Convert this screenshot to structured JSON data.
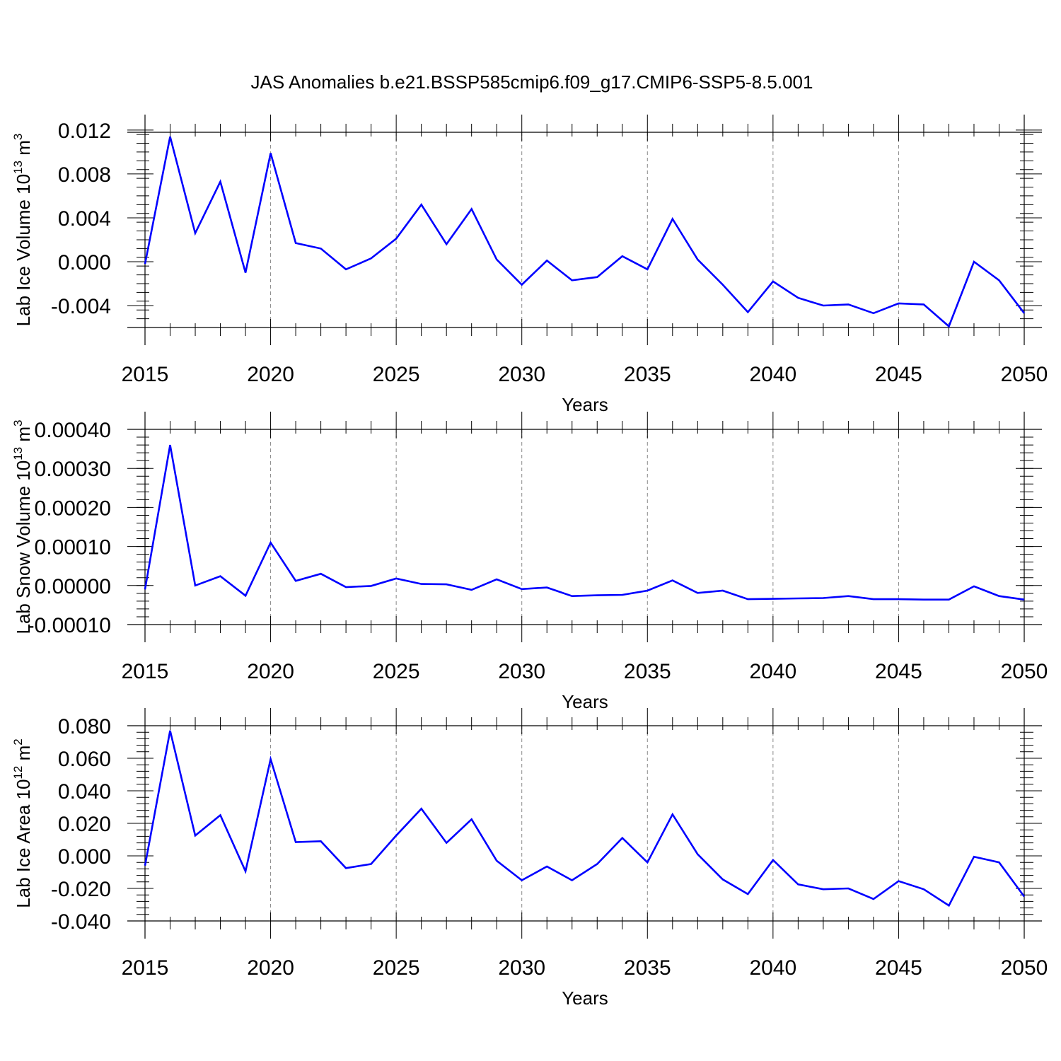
{
  "title": "JAS Anomalies b.e21.BSSP585cmip6.f09_g17.CMIP6-SSP5-8.5.001",
  "line_color": "#0000ff",
  "chart_data": [
    {
      "type": "line",
      "title": "JAS Anomalies b.e21.BSSP585cmip6.f09_g17.CMIP6-SSP5-8.5.001",
      "xlabel": "Years",
      "ylabel": {
        "base": "Lab Ice Volume 10",
        "exp": "13",
        "unit": " m",
        "unit_exp": "3"
      },
      "xlim": [
        2015,
        2050
      ],
      "ylim": [
        -0.006,
        0.0118
      ],
      "yticks": [
        0.012,
        0.008,
        0.004,
        0.0,
        -0.004
      ],
      "ytick_labels": [
        "0.012",
        "0.008",
        "0.004",
        "0.000",
        "-0.004"
      ],
      "xticks": [
        2015,
        2020,
        2025,
        2030,
        2035,
        2040,
        2045,
        2050
      ],
      "xtick_labels": [
        "2015",
        "2020",
        "2025",
        "2030",
        "2035",
        "2040",
        "2045",
        "2050"
      ],
      "x": [
        2015,
        2016,
        2017,
        2018,
        2019,
        2020,
        2021,
        2022,
        2023,
        2024,
        2025,
        2026,
        2027,
        2028,
        2029,
        2030,
        2031,
        2032,
        2033,
        2034,
        2035,
        2036,
        2037,
        2038,
        2039,
        2040,
        2041,
        2042,
        2043,
        2044,
        2045,
        2046,
        2047,
        2048,
        2049,
        2050
      ],
      "series": [
        {
          "name": "Lab Ice Volume",
          "values": [
            -0.0002,
            0.0114,
            0.0026,
            0.0073,
            -0.001,
            0.0099,
            0.0017,
            0.0012,
            -0.0007,
            0.0003,
            0.0021,
            0.0052,
            0.0016,
            0.0048,
            0.0002,
            -0.0021,
            0.0001,
            -0.0017,
            -0.0014,
            0.0005,
            -0.0007,
            0.0039,
            0.0002,
            -0.0021,
            -0.0046,
            -0.0018,
            -0.0033,
            -0.004,
            -0.0039,
            -0.0047,
            -0.0038,
            -0.0039,
            -0.0059,
            0.0,
            -0.0017,
            -0.0047
          ]
        }
      ]
    },
    {
      "type": "line",
      "xlabel": "Years",
      "ylabel": {
        "base": "Lab Snow Volume 10",
        "exp": "13",
        "unit": " m",
        "unit_exp": "3"
      },
      "xlim": [
        2015,
        2050
      ],
      "ylim": [
        -0.0001,
        0.0004
      ],
      "yticks": [
        0.0004,
        0.0003,
        0.0002,
        0.0001,
        0.0,
        -0.0001
      ],
      "ytick_labels": [
        "0.00040",
        "0.00030",
        "0.00020",
        "0.00010",
        "0.00000",
        "-0.00010"
      ],
      "xticks": [
        2015,
        2020,
        2025,
        2030,
        2035,
        2040,
        2045,
        2050
      ],
      "xtick_labels": [
        "2015",
        "2020",
        "2025",
        "2030",
        "2035",
        "2040",
        "2045",
        "2050"
      ],
      "x": [
        2015,
        2016,
        2017,
        2018,
        2019,
        2020,
        2021,
        2022,
        2023,
        2024,
        2025,
        2026,
        2027,
        2028,
        2029,
        2030,
        2031,
        2032,
        2033,
        2034,
        2035,
        2036,
        2037,
        2038,
        2039,
        2040,
        2041,
        2042,
        2043,
        2044,
        2045,
        2046,
        2047,
        2048,
        2049,
        2050
      ],
      "series": [
        {
          "name": "Lab Snow Volume",
          "values": [
            -1e-05,
            0.00036,
            0.0,
            2.4e-05,
            -2.6e-05,
            0.00011,
            1.2e-05,
            3e-05,
            -4e-06,
            -1e-06,
            1.8e-05,
            4e-06,
            3e-06,
            -1.1e-05,
            1.6e-05,
            -9e-06,
            -5e-06,
            -2.7e-05,
            -2.5e-05,
            -2.4e-05,
            -1.3e-05,
            1.3e-05,
            -1.9e-05,
            -1.3e-05,
            -3.5e-05,
            -3.4e-05,
            -3.3e-05,
            -3.2e-05,
            -2.7e-05,
            -3.5e-05,
            -3.5e-05,
            -3.6e-05,
            -3.6e-05,
            -2e-06,
            -2.7e-05,
            -3.6e-05
          ]
        }
      ]
    },
    {
      "type": "line",
      "xlabel": "Years",
      "ylabel": {
        "base": "Lab Ice Area 10",
        "exp": "12",
        "unit": " m",
        "unit_exp": "2"
      },
      "xlim": [
        2015,
        2050
      ],
      "ylim": [
        -0.04,
        0.08
      ],
      "yticks": [
        0.08,
        0.06,
        0.04,
        0.02,
        0.0,
        -0.02,
        -0.04
      ],
      "ytick_labels": [
        "0.080",
        "0.060",
        "0.040",
        "0.020",
        "0.000",
        "-0.020",
        "-0.040"
      ],
      "xticks": [
        2015,
        2020,
        2025,
        2030,
        2035,
        2040,
        2045,
        2050
      ],
      "xtick_labels": [
        "2015",
        "2020",
        "2025",
        "2030",
        "2035",
        "2040",
        "2045",
        "2050"
      ],
      "x": [
        2015,
        2016,
        2017,
        2018,
        2019,
        2020,
        2021,
        2022,
        2023,
        2024,
        2025,
        2026,
        2027,
        2028,
        2029,
        2030,
        2031,
        2032,
        2033,
        2034,
        2035,
        2036,
        2037,
        2038,
        2039,
        2040,
        2041,
        2042,
        2043,
        2044,
        2045,
        2046,
        2047,
        2048,
        2049,
        2050
      ],
      "series": [
        {
          "name": "Lab Ice Area",
          "values": [
            -0.006,
            0.077,
            0.0125,
            0.025,
            -0.0095,
            0.0595,
            0.0085,
            0.009,
            -0.0075,
            -0.005,
            0.0125,
            0.029,
            0.008,
            0.0225,
            -0.003,
            -0.015,
            -0.0065,
            -0.015,
            -0.005,
            0.011,
            -0.004,
            0.0255,
            0.001,
            -0.0145,
            -0.0235,
            -0.0025,
            -0.0175,
            -0.0205,
            -0.02,
            -0.0265,
            -0.0155,
            -0.0205,
            -0.0305,
            -0.0005,
            -0.004,
            -0.025
          ]
        }
      ]
    }
  ]
}
